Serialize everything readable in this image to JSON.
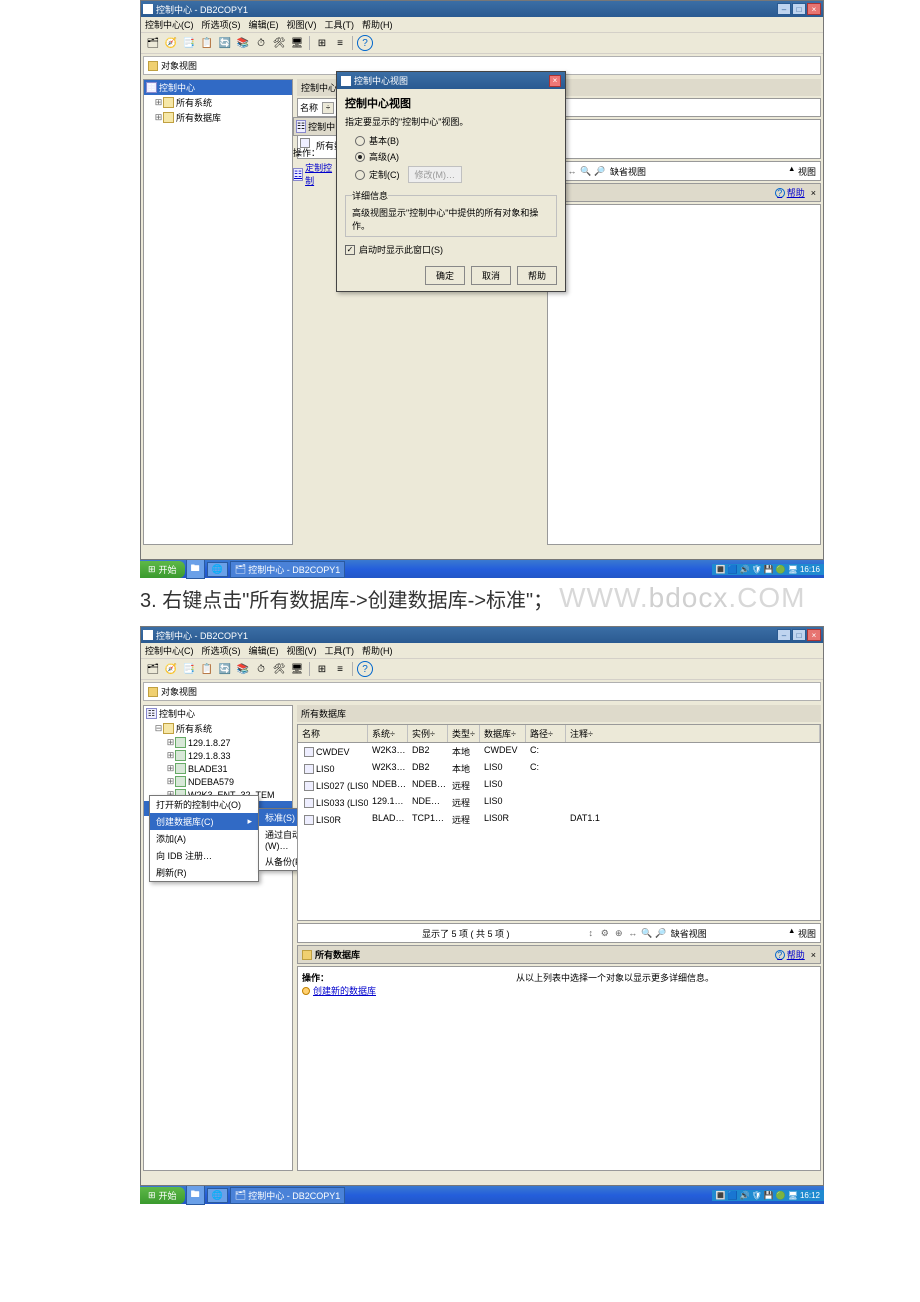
{
  "upper": {
    "title": "控制中心 - DB2COPY1",
    "menus": [
      "控制中心(C)",
      "所选项(S)",
      "编辑(E)",
      "视图(V)",
      "工具(T)",
      "帮助(H)"
    ],
    "crumb": "对象视图",
    "tree": {
      "root": "控制中心",
      "items": [
        "所有系统",
        "所有数据库"
      ]
    },
    "content_header": "控制中心",
    "name_label": "名称",
    "list_items": [
      "所有系统",
      "所有数据库"
    ],
    "op_header": "控制中",
    "op_label": "操作：",
    "op_link": "定制控制",
    "detail_label": "缺省视图",
    "detail_view_hint": "视图",
    "help_link": "帮助",
    "dialog": {
      "title": "控制中心视图",
      "heading": "控制中心视图",
      "hint": "指定要显示的\"控制中心\"视图。",
      "opt_basic": "基本(B)",
      "opt_adv": "高级(A)",
      "opt_custom": "定制(C)",
      "custom_btn": "修改(M)…",
      "fieldset_legend": "详细信息",
      "fieldset_text": "高级视图显示\"控制中心\"中提供的所有对象和操作。",
      "chk": "启动时显示此窗口(S)",
      "btn_ok": "确定",
      "btn_cancel": "取消",
      "btn_help": "帮助"
    },
    "taskbar": {
      "start": "开始",
      "item": "控制中心 - DB2COPY1",
      "time": "16:16"
    }
  },
  "step_text": "3. 右键点击\"所有数据库->创建数据库->标准\"；",
  "watermark": "www.bdocx.com",
  "lower": {
    "title": "控制中心 - DB2COPY1",
    "menus": [
      "控制中心(C)",
      "所选项(S)",
      "编辑(E)",
      "视图(V)",
      "工具(T)",
      "帮助(H)"
    ],
    "crumb": "对象视图",
    "tree": {
      "root": "控制中心",
      "sys": "所有系统",
      "hosts": [
        "129.1.8.27",
        "129.1.8.33",
        "BLADE31",
        "NDEBA579",
        "W2K3_ENT_32_TEM"
      ],
      "dbroot": "所有数据库",
      "dbs": [
        "CWDEV",
        "LIS0",
        "LIS027",
        "LIS033",
        "LIS0R"
      ]
    },
    "ctx": {
      "items": [
        "打开新的控制中心(O)",
        "创建数据库(C)",
        "添加(A)",
        "向 IDB 注册…",
        "刷新(R)"
      ],
      "sub": [
        "标准(S)",
        "通过自动维护(W)…",
        "从备份(F)…"
      ]
    },
    "list_header": "所有数据库",
    "columns": [
      "名称",
      "系统÷",
      "实例÷",
      "类型÷",
      "数据库÷",
      "路径÷",
      "注释÷"
    ],
    "rows": [
      [
        "CWDEV",
        "W2K3…",
        "DB2",
        "本地",
        "CWDEV",
        "C:",
        ""
      ],
      [
        "LIS0",
        "W2K3…",
        "DB2",
        "本地",
        "LIS0",
        "C:",
        ""
      ],
      [
        "LIS027 (LIS0)",
        "NDEB…",
        "NDEB…",
        "远程",
        "LIS0",
        "",
        ""
      ],
      [
        "LIS033 (LIS0)",
        "129.1…",
        "NDE…",
        "远程",
        "LIS0",
        "",
        ""
      ],
      [
        "LIS0R",
        "BLAD…",
        "TCP1…",
        "远程",
        "LIS0R",
        "",
        "DAT1.1"
      ]
    ],
    "count_text": "显示了 5 项 ( 共 5 项 )",
    "detail_label": "缺省视图",
    "dheader": "所有数据库",
    "help_link": "帮助",
    "action_label": "操作：",
    "action_link": "创建新的数据库",
    "action_msg": "从以上列表中选择一个对象以显示更多详细信息。",
    "taskbar": {
      "start": "开始",
      "item": "控制中心 - DB2COPY1",
      "time": "16:12"
    }
  }
}
